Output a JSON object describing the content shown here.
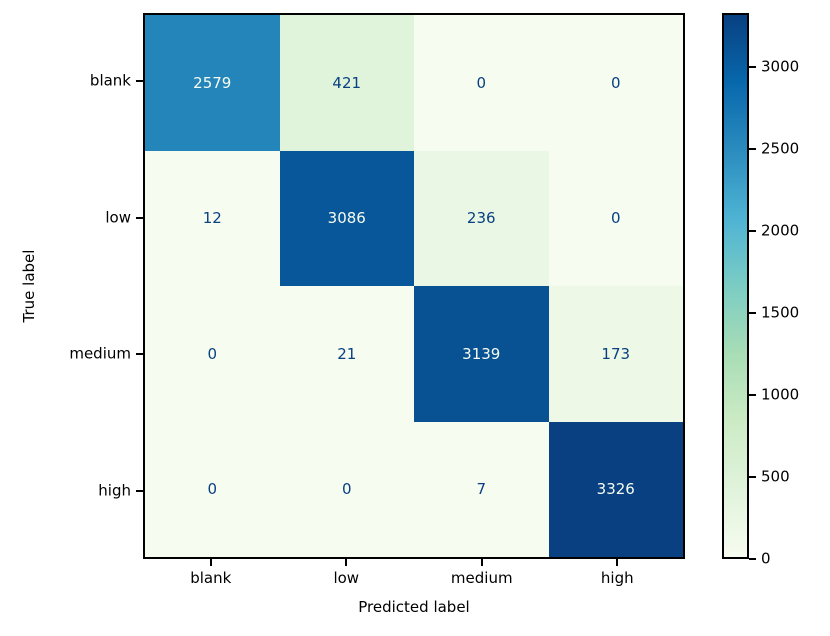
{
  "figure": {
    "background_color": "#ffffff",
    "axis_color": "#000000"
  },
  "chart_data": {
    "type": "heatmap",
    "title": "",
    "xlabel": "Predicted label",
    "ylabel": "True label",
    "x_categories": [
      "blank",
      "low",
      "medium",
      "high"
    ],
    "y_categories": [
      "blank",
      "low",
      "medium",
      "high"
    ],
    "matrix": [
      [
        2579,
        421,
        0,
        0
      ],
      [
        12,
        3086,
        236,
        0
      ],
      [
        0,
        21,
        3139,
        173
      ],
      [
        0,
        0,
        7,
        3326
      ]
    ],
    "vmin": 0,
    "vmax": 3326,
    "grid": false,
    "legend_position": "right-colorbar",
    "colorbar_ticks": [
      0,
      500,
      1000,
      1500,
      2000,
      2500,
      3000
    ],
    "colormap": {
      "name": "GnBu",
      "stops": [
        "#f7fcf0",
        "#e0f3db",
        "#ccebc5",
        "#a8ddb5",
        "#7bccc4",
        "#4eb3d3",
        "#2b8cbe",
        "#0868ac",
        "#084081"
      ]
    },
    "cell_text_color_dark": "#084081",
    "cell_text_color_light": "#f7fcf0"
  }
}
